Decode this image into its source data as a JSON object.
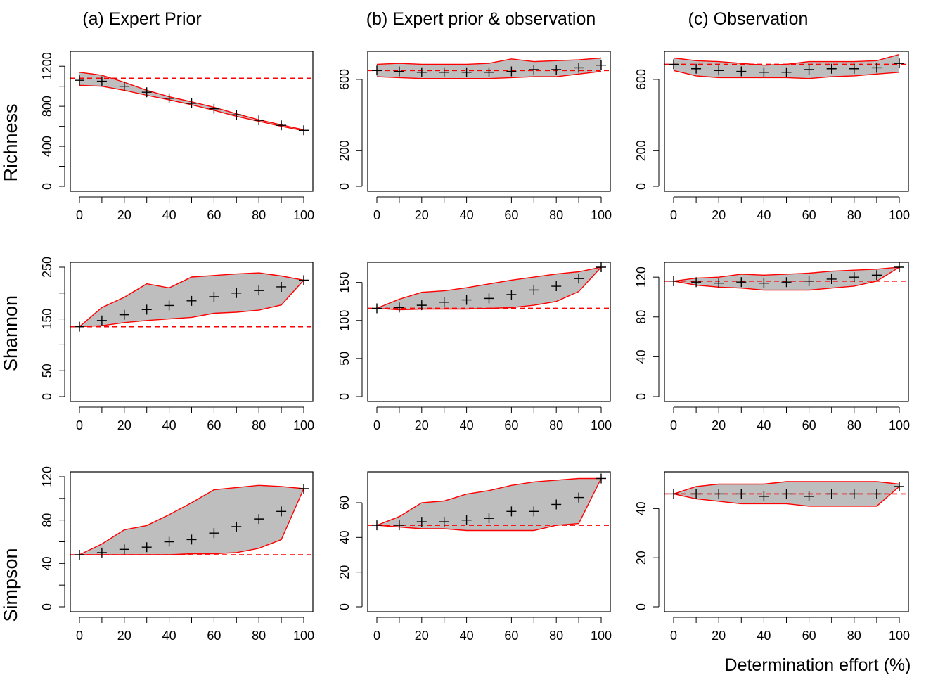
{
  "figure": {
    "column_titles": [
      "(a) Expert Prior",
      "(b) Expert prior & observation",
      "(c) Observation"
    ],
    "row_labels": [
      "Richness",
      "Shannon",
      "Simpson"
    ],
    "xlabel": "Determination effort (%)",
    "colors": {
      "band_fill": "#bebebe",
      "band_edge": "#ff0000",
      "reference_line": "#ff0000",
      "markers": "#000000"
    }
  },
  "chart_data": [
    {
      "type": "area",
      "row": "Richness",
      "column": "(a) Expert Prior",
      "x": [
        0,
        10,
        20,
        30,
        40,
        50,
        60,
        70,
        80,
        90,
        100
      ],
      "xlim": [
        0,
        100
      ],
      "xticks": [
        0,
        20,
        40,
        60,
        80,
        100
      ],
      "ylim": [
        0,
        1300
      ],
      "yticks": [
        0,
        200,
        400,
        600,
        800,
        1000,
        1200
      ],
      "ytick_labels": [
        "0",
        "",
        "400",
        "",
        "800",
        "",
        "1200"
      ],
      "reference": 1080,
      "upper": [
        1140,
        1110,
        1040,
        960,
        895,
        845,
        790,
        725,
        665,
        615,
        565
      ],
      "lower": [
        1010,
        1000,
        960,
        910,
        865,
        815,
        760,
        700,
        650,
        600,
        555
      ],
      "median": [
        1060,
        1050,
        1000,
        940,
        880,
        830,
        775,
        715,
        660,
        610,
        560
      ]
    },
    {
      "type": "area",
      "row": "Richness",
      "column": "(b) Expert prior & observation",
      "x": [
        0,
        10,
        20,
        30,
        40,
        50,
        60,
        70,
        80,
        90,
        100
      ],
      "xlim": [
        0,
        100
      ],
      "xticks": [
        0,
        20,
        40,
        60,
        80,
        100
      ],
      "ylim": [
        0,
        730
      ],
      "yticks": [
        0,
        200,
        600
      ],
      "ytick_labels": [
        "0",
        "200",
        "600"
      ],
      "reference": 650,
      "upper": [
        685,
        690,
        685,
        685,
        685,
        690,
        715,
        700,
        705,
        710,
        720
      ],
      "lower": [
        615,
        610,
        605,
        605,
        605,
        605,
        610,
        615,
        615,
        630,
        645
      ],
      "median": [
        650,
        645,
        640,
        640,
        640,
        640,
        645,
        655,
        655,
        665,
        680
      ]
    },
    {
      "type": "area",
      "row": "Richness",
      "column": "(c) Observation",
      "x": [
        0,
        10,
        20,
        30,
        40,
        50,
        60,
        70,
        80,
        90,
        100
      ],
      "xlim": [
        0,
        100
      ],
      "xticks": [
        0,
        20,
        40,
        60,
        80,
        100
      ],
      "ylim": [
        0,
        730
      ],
      "yticks": [
        0,
        200,
        600
      ],
      "ytick_labels": [
        "0",
        "200",
        "600"
      ],
      "reference": 685,
      "upper": [
        720,
        705,
        700,
        690,
        680,
        685,
        700,
        700,
        700,
        705,
        740
      ],
      "lower": [
        650,
        620,
        610,
        610,
        610,
        610,
        605,
        615,
        620,
        630,
        640
      ],
      "median": [
        685,
        660,
        650,
        645,
        640,
        640,
        655,
        660,
        660,
        665,
        690
      ]
    },
    {
      "type": "area",
      "row": "Shannon",
      "column": "(a) Expert Prior",
      "x": [
        0,
        10,
        20,
        30,
        40,
        50,
        60,
        70,
        80,
        90,
        100
      ],
      "xlim": [
        0,
        100
      ],
      "xticks": [
        0,
        20,
        40,
        60,
        80,
        100
      ],
      "ylim": [
        0,
        250
      ],
      "yticks": [
        0,
        50,
        100,
        150,
        200,
        250
      ],
      "ytick_labels": [
        "0",
        "50",
        "",
        "150",
        "",
        "250"
      ],
      "reference": 135,
      "upper": [
        135,
        172,
        192,
        218,
        210,
        231,
        234,
        237,
        239,
        233,
        225
      ],
      "lower": [
        135,
        137,
        143,
        147,
        150,
        153,
        161,
        163,
        167,
        177,
        225
      ],
      "median": [
        135,
        147,
        158,
        168,
        176,
        185,
        193,
        200,
        205,
        212,
        225
      ]
    },
    {
      "type": "area",
      "row": "Shannon",
      "column": "(b) Expert prior & observation",
      "x": [
        0,
        10,
        20,
        30,
        40,
        50,
        60,
        70,
        80,
        90,
        100
      ],
      "xlim": [
        0,
        100
      ],
      "xticks": [
        0,
        20,
        40,
        60,
        80,
        100
      ],
      "ylim": [
        0,
        170
      ],
      "yticks": [
        0,
        50,
        100,
        150
      ],
      "ytick_labels": [
        "0",
        "50",
        "100",
        "150"
      ],
      "reference": 116,
      "upper": [
        116,
        128,
        137,
        139,
        143,
        148,
        153,
        157,
        161,
        164,
        170
      ],
      "lower": [
        116,
        114,
        115,
        115,
        115,
        116,
        117,
        120,
        125,
        138,
        170
      ],
      "median": [
        116,
        117,
        120,
        124,
        127,
        129,
        134,
        140,
        145,
        155,
        170
      ]
    },
    {
      "type": "area",
      "row": "Shannon",
      "column": "(c) Observation",
      "x": [
        0,
        10,
        20,
        30,
        40,
        50,
        60,
        70,
        80,
        90,
        100
      ],
      "xlim": [
        0,
        100
      ],
      "xticks": [
        0,
        20,
        40,
        60,
        80,
        100
      ],
      "ylim": [
        0,
        130
      ],
      "yticks": [
        0,
        40,
        80,
        120
      ],
      "ytick_labels": [
        "0",
        "40",
        "80",
        "120"
      ],
      "reference": 116,
      "upper": [
        116,
        119,
        120,
        123,
        122,
        123,
        124,
        126,
        127,
        128,
        130
      ],
      "lower": [
        116,
        112,
        110,
        109,
        107,
        107,
        107,
        109,
        111,
        116,
        130
      ],
      "median": [
        116,
        115,
        114,
        115,
        114,
        115,
        116,
        118,
        120,
        122,
        130
      ]
    },
    {
      "type": "area",
      "row": "Simpson",
      "column": "(a) Expert Prior",
      "x": [
        0,
        10,
        20,
        30,
        40,
        50,
        60,
        70,
        80,
        90,
        100
      ],
      "xlim": [
        0,
        100
      ],
      "xticks": [
        0,
        20,
        40,
        60,
        80,
        100
      ],
      "ylim": [
        0,
        120
      ],
      "yticks": [
        0,
        20,
        40,
        60,
        80,
        100,
        120
      ],
      "ytick_labels": [
        "0",
        "",
        "40",
        "",
        "80",
        "",
        "120"
      ],
      "reference": 48,
      "upper": [
        48,
        58,
        71,
        75,
        85,
        96,
        108,
        110,
        112,
        111,
        109
      ],
      "lower": [
        48,
        48,
        48,
        48,
        48,
        49,
        49,
        50,
        54,
        62,
        109
      ],
      "median": [
        48,
        50,
        53,
        55,
        60,
        62,
        68,
        74,
        81,
        88,
        109
      ]
    },
    {
      "type": "area",
      "row": "Simpson",
      "column": "(b) Expert prior & observation",
      "x": [
        0,
        10,
        20,
        30,
        40,
        50,
        60,
        70,
        80,
        90,
        100
      ],
      "xlim": [
        0,
        100
      ],
      "xticks": [
        0,
        20,
        40,
        60,
        80,
        100
      ],
      "ylim": [
        0,
        75
      ],
      "yticks": [
        0,
        20,
        40,
        60
      ],
      "ytick_labels": [
        "0",
        "20",
        "40",
        "60"
      ],
      "reference": 47,
      "upper": [
        47,
        52,
        60,
        61,
        65,
        67,
        70,
        72,
        73,
        74,
        74
      ],
      "lower": [
        47,
        46,
        45,
        45,
        44,
        44,
        44,
        44,
        47,
        48,
        74
      ],
      "median": [
        47,
        47,
        49,
        49,
        50,
        51,
        55,
        55,
        59,
        63,
        74
      ]
    },
    {
      "type": "area",
      "row": "Simpson",
      "column": "(c) Observation",
      "x": [
        0,
        10,
        20,
        30,
        40,
        50,
        60,
        70,
        80,
        90,
        100
      ],
      "xlim": [
        0,
        100
      ],
      "xticks": [
        0,
        20,
        40,
        60,
        80,
        100
      ],
      "ylim": [
        0,
        53
      ],
      "yticks": [
        0,
        20,
        40
      ],
      "ytick_labels": [
        "0",
        "20",
        "40"
      ],
      "reference": 46,
      "upper": [
        46,
        49,
        50,
        50,
        50,
        51,
        51,
        51,
        51,
        51,
        50
      ],
      "lower": [
        46,
        44,
        43,
        42,
        42,
        42,
        41,
        41,
        41,
        41,
        49
      ],
      "median": [
        46,
        46,
        46,
        46,
        45,
        46,
        45,
        46,
        46,
        46,
        49
      ]
    }
  ]
}
